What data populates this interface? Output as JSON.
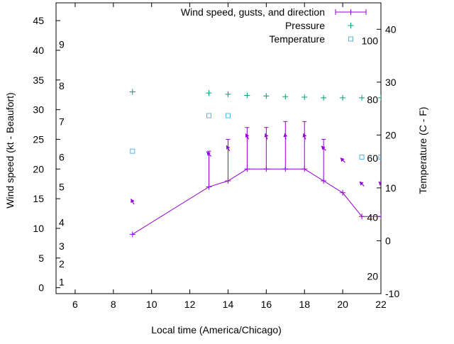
{
  "chart_data": {
    "type": "line",
    "xlabel": "Local time (America/Chicago)",
    "ylabel": "Wind speed (kt - Beaufort)",
    "y2label": "Temperature (C - F)",
    "xlim": [
      5,
      22
    ],
    "ylim": [
      -1,
      48
    ],
    "y2lim": [
      -10,
      45
    ],
    "x_ticks": [
      "6",
      "8",
      "10",
      "12",
      "14",
      "16",
      "18",
      "20",
      "22"
    ],
    "y_ticks": [
      "0",
      "5",
      "10",
      "15",
      "20",
      "25",
      "30",
      "35",
      "40",
      "45"
    ],
    "y2_ticks": [
      "-10",
      "0",
      "10",
      "20",
      "30",
      "40"
    ],
    "beaufort_labels": [
      {
        "label": "1",
        "value": 1
      },
      {
        "label": "2",
        "value": 4
      },
      {
        "label": "3",
        "value": 7
      },
      {
        "label": "4",
        "value": 11
      },
      {
        "label": "5",
        "value": 17
      },
      {
        "label": "6",
        "value": 22
      },
      {
        "label": "7",
        "value": 28
      },
      {
        "label": "8",
        "value": 34
      },
      {
        "label": "9",
        "value": 41
      }
    ],
    "fahrenheit_labels": [
      {
        "label": "20",
        "value": -6.7
      },
      {
        "label": "40",
        "value": 4.4
      },
      {
        "label": "60",
        "value": 15.6
      },
      {
        "label": "80",
        "value": 26.7
      },
      {
        "label": "100",
        "value": 37.8
      }
    ],
    "legend": {
      "position": "top-right",
      "entries": [
        "Wind speed, gusts, and direction",
        "Pressure",
        "Temperature"
      ]
    },
    "series": [
      {
        "name": "Wind speed, gusts, and direction",
        "color": "#9400d3",
        "x": [
          9,
          13,
          14,
          15,
          16,
          17,
          18,
          19,
          20,
          21,
          22
        ],
        "values": [
          9,
          17,
          18,
          20,
          20,
          20,
          20,
          18,
          16,
          12,
          12
        ],
        "gusts": [
          null,
          23,
          25,
          27,
          27,
          28,
          28,
          25,
          null,
          null,
          null
        ],
        "direction_deg": [
          150,
          135,
          150,
          150,
          160,
          170,
          160,
          135,
          135,
          135,
          135
        ]
      },
      {
        "name": "Pressure",
        "color": "#009e73",
        "x": [
          9,
          13,
          14,
          15,
          16,
          17,
          18,
          19,
          20,
          21,
          22
        ],
        "values": [
          33,
          32.8,
          32.6,
          32.4,
          32.3,
          32.2,
          32.1,
          32,
          32,
          32,
          32
        ]
      },
      {
        "name": "Temperature",
        "color": "#56b4e9",
        "x": [
          9,
          13,
          14,
          21,
          22
        ],
        "values": [
          23,
          29,
          29,
          22,
          22
        ]
      }
    ]
  }
}
